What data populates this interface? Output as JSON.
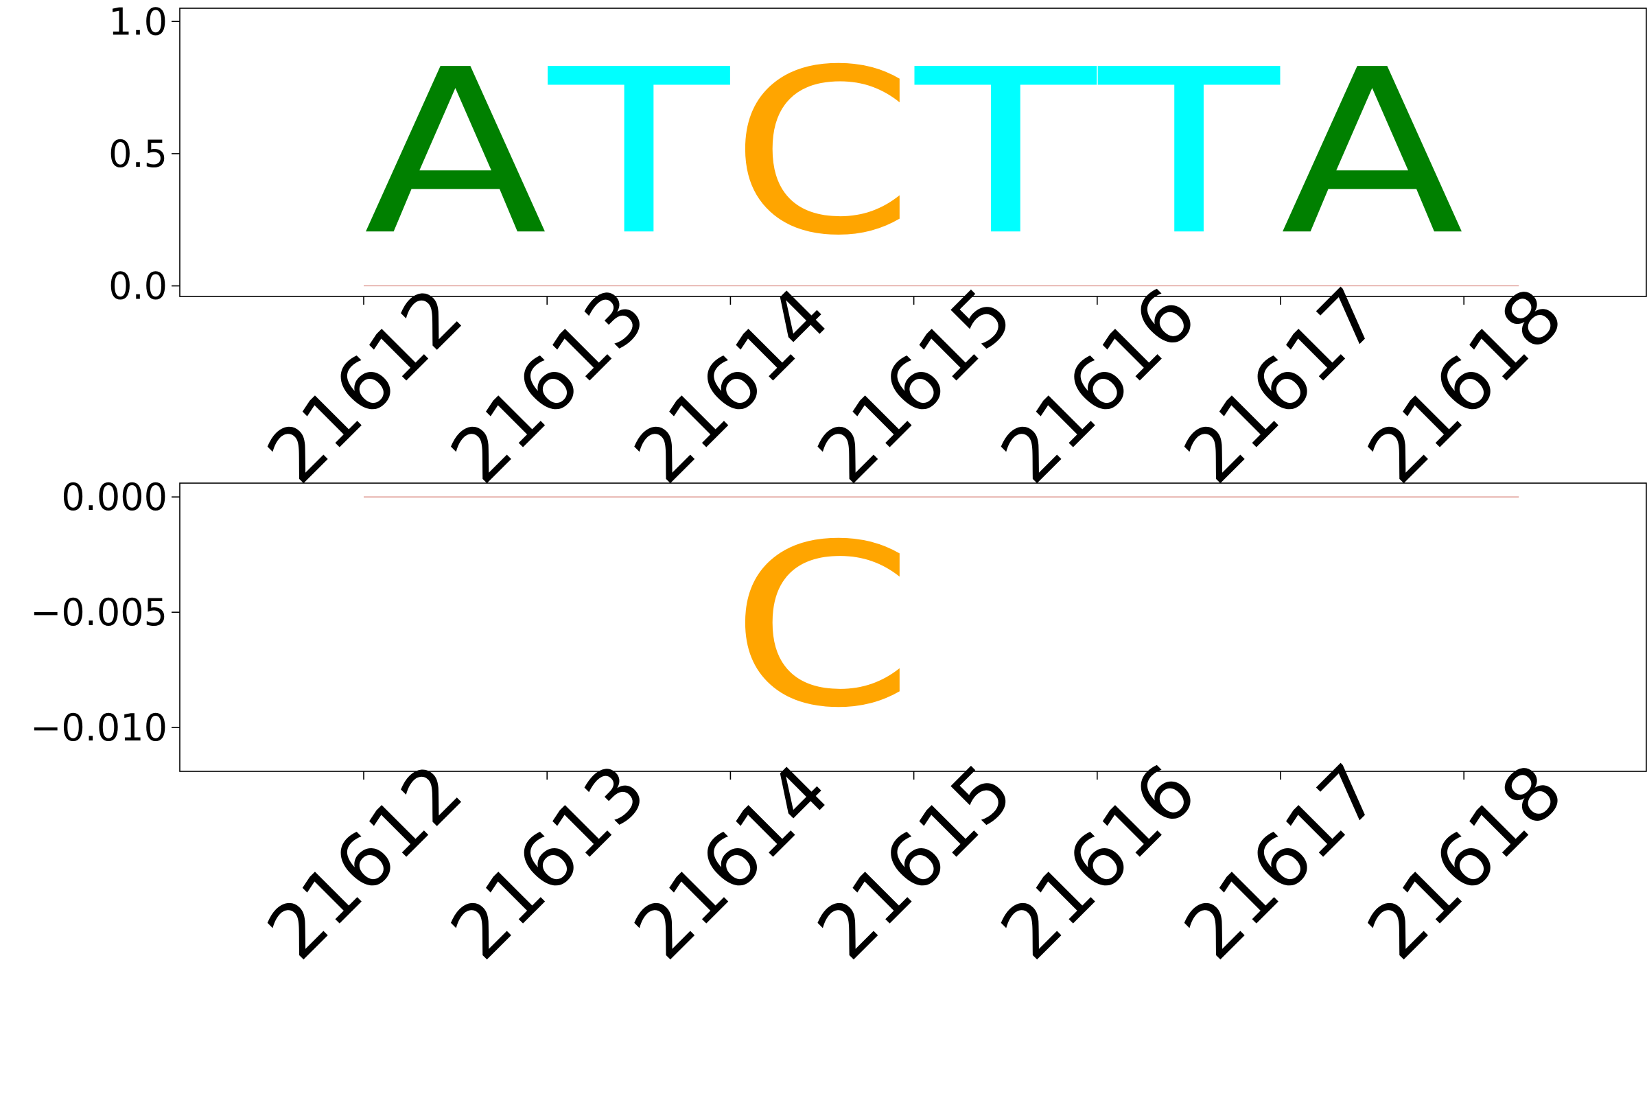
{
  "chart_data": [
    {
      "type": "sequence-logo",
      "title": "",
      "xlabel": "",
      "ylabel": "",
      "ylim": [
        -0.04,
        1.05
      ],
      "yticks": [
        0.0,
        0.5,
        1.0
      ],
      "ytick_labels": [
        "0.0",
        "0.5",
        "1.0"
      ],
      "positions": [
        "21612",
        "21613",
        "21614",
        "21615",
        "21616",
        "21617",
        "21618"
      ],
      "letters": [
        {
          "pos": "21612",
          "char": "A",
          "value": 1.0,
          "color": "#008000"
        },
        {
          "pos": "21613",
          "char": "T",
          "value": 1.0,
          "color": "#00ffff"
        },
        {
          "pos": "21614",
          "char": "C",
          "value": 1.0,
          "color": "#ffa500"
        },
        {
          "pos": "21615",
          "char": "T",
          "value": 1.0,
          "color": "#00ffff"
        },
        {
          "pos": "21616",
          "char": "T",
          "value": 1.0,
          "color": "#00ffff"
        },
        {
          "pos": "21617",
          "char": "A",
          "value": 1.0,
          "color": "#008000"
        }
      ]
    },
    {
      "type": "sequence-logo",
      "title": "",
      "xlabel": "",
      "ylabel": "",
      "ylim": [
        -0.0119,
        0.0006
      ],
      "yticks": [
        0.0,
        -0.005,
        -0.01
      ],
      "ytick_labels": [
        "0.000",
        "−0.005",
        "−0.010"
      ],
      "positions": [
        "21612",
        "21613",
        "21614",
        "21615",
        "21616",
        "21617",
        "21618"
      ],
      "letters": [
        {
          "pos": "21614",
          "char": "C",
          "value": -0.0113,
          "color": "#ffa500"
        }
      ]
    }
  ],
  "colors": {
    "A": "#008000",
    "C": "#ffa500",
    "T": "#00ffff",
    "G": "#ff0000"
  }
}
